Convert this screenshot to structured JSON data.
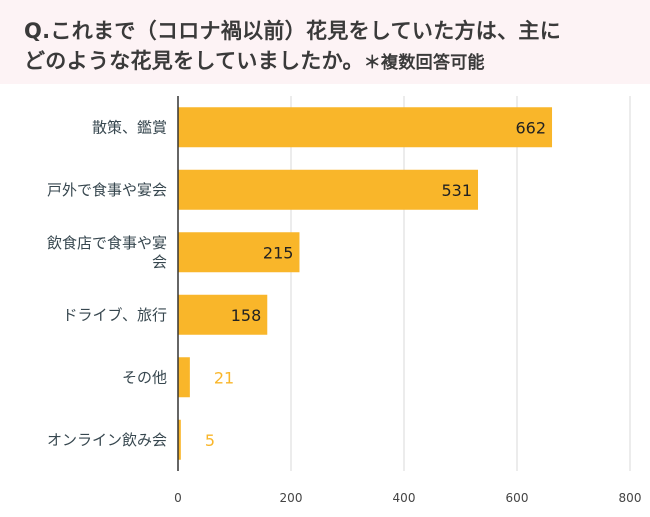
{
  "title": {
    "line1": "Q.これまで（コロナ禍以前）花見をしていた方は、主に",
    "line2": "どのような花見をしていましたか。",
    "note": "＊複数回答可能"
  },
  "colors": {
    "bar": "#f9b62a",
    "label_inside": "#222222",
    "label_outside": "#f9b62a",
    "category_text": "#37474f",
    "grid": "#d9d9d9",
    "axis": "#333333",
    "title_bg": "#fdf3f5"
  },
  "chart_data": {
    "type": "bar",
    "orientation": "horizontal",
    "categories": [
      [
        "散策、鑑賞"
      ],
      [
        "戸外で食事や宴会"
      ],
      [
        "飲食店で食事や宴",
        "会"
      ],
      [
        "ドライブ、旅行"
      ],
      [
        "その他"
      ],
      [
        "オンライン飲み会"
      ]
    ],
    "values": [
      662,
      531,
      215,
      158,
      21,
      5
    ],
    "xlim": [
      0,
      800
    ],
    "xticks": [
      0,
      200,
      400,
      600,
      800
    ],
    "grid": true,
    "legend": "none"
  }
}
